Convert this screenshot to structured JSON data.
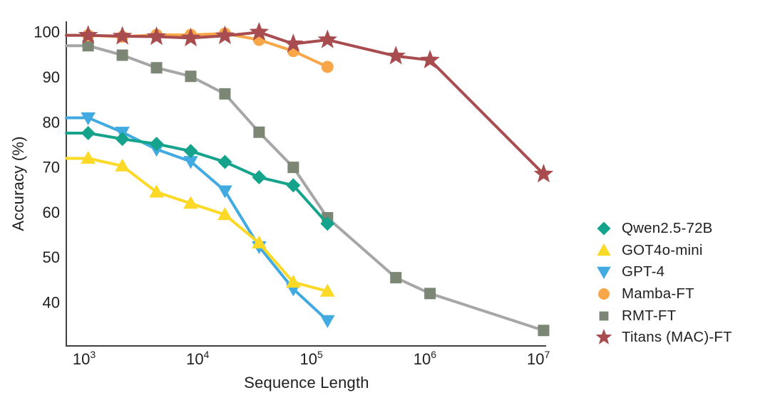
{
  "chart_data": {
    "type": "line",
    "title": "",
    "xlabel": "Sequence Length",
    "ylabel": "Accuracy (%)",
    "x_scale": "log",
    "grid": false,
    "legend_position": "right-outside",
    "x_ticks": [
      "10^3",
      "10^4",
      "10^5",
      "10^6",
      "10^7"
    ],
    "y_ticks": [
      40,
      50,
      60,
      70,
      80,
      90,
      100
    ],
    "xlim": [
      660,
      11500000
    ],
    "ylim": [
      30,
      102.5
    ],
    "x": [
      1024,
      2048,
      4096,
      8192,
      16384,
      32768,
      65536,
      131072,
      524288,
      1048576,
      10485760
    ],
    "series": [
      {
        "name": "Qwen2.5-72B",
        "color": "#15A48B",
        "marker": "diamond",
        "values": [
          77.6,
          76.3,
          75.2,
          73.6,
          71.2,
          67.8,
          66.0,
          57.5
        ]
      },
      {
        "name": "GOT4o-mini",
        "color": "#FBD926",
        "marker": "triangle-up",
        "values": [
          72.0,
          70.3,
          64.5,
          62.0,
          59.5,
          53.2,
          44.5,
          42.5
        ]
      },
      {
        "name": "GPT-4",
        "color": "#41AAE1",
        "marker": "triangle-down",
        "values": [
          81.0,
          77.8,
          74.0,
          71.3,
          64.8,
          52.4,
          43.0,
          36.0
        ]
      },
      {
        "name": "Mamba-FT",
        "color": "#F8A647",
        "marker": "circle",
        "values": [
          99.3,
          99.0,
          99.4,
          99.4,
          99.7,
          98.3,
          95.8,
          92.3
        ]
      },
      {
        "name": "RMT-FT",
        "color": "#7B8674",
        "line_color": "#A6A6A6",
        "marker": "square",
        "values": [
          97.0,
          94.9,
          92.1,
          90.2,
          86.3,
          77.8,
          70.0,
          58.8,
          45.5,
          42.0,
          33.8
        ]
      },
      {
        "name": "Titans (MAC)-FT",
        "color": "#A84C50",
        "marker": "star",
        "values": [
          99.3,
          99.1,
          99.0,
          98.7,
          99.2,
          100.0,
          97.4,
          98.3,
          94.7,
          93.8,
          68.5
        ]
      }
    ]
  }
}
